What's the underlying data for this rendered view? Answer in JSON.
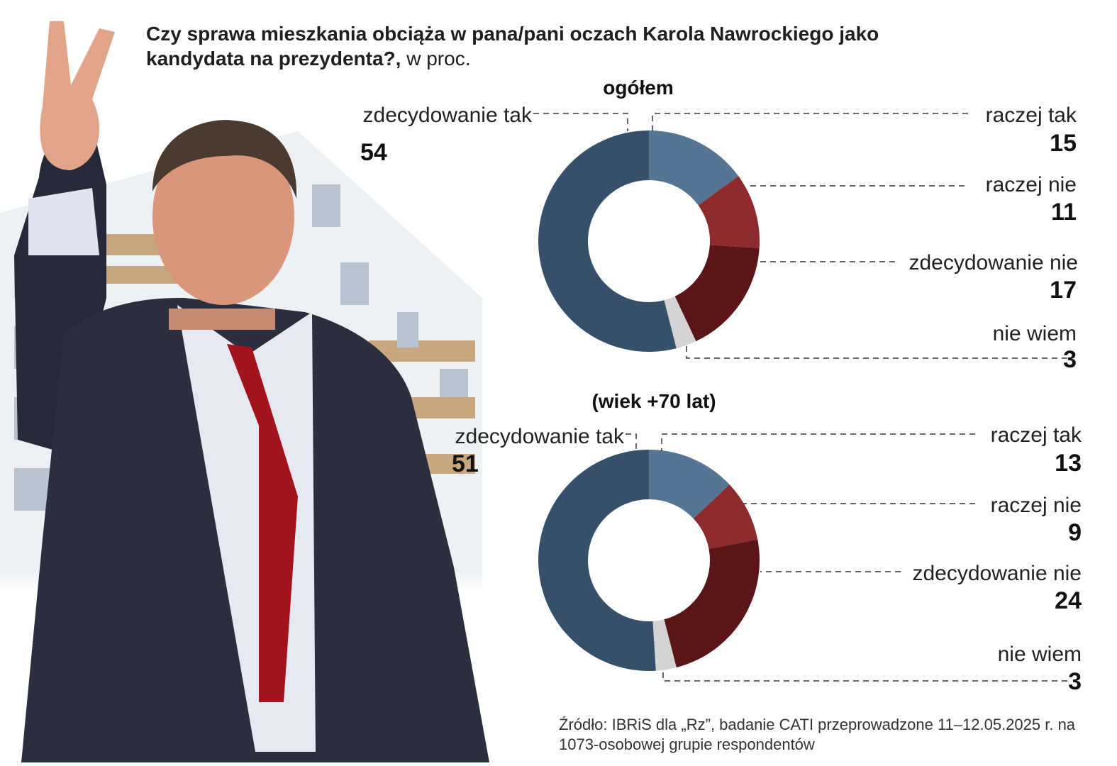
{
  "title": "Czy sprawa mieszkania obciąża w pana/pani oczach Karola Nawrockiego jako kandydata na prezydenta?,",
  "unit": "w proc.",
  "source": "Źródło: IBRiS dla „Rz”, badanie CATI przeprowadzone 11–12.05.2025 r. na 1073-osobowej grupie respondentów",
  "colors": {
    "zdecydowanie_tak": "#36506b",
    "raczej_tak": "#557594",
    "raczej_nie": "#8c2a2e",
    "zdecydowanie_nie": "#5b1519",
    "nie_wiem": "#d4d4d4"
  },
  "photo": {
    "description_icon": "person-photo",
    "background_icon": "apartment-building"
  },
  "chart_data": [
    {
      "type": "pie",
      "title": "ogółem",
      "categories": [
        "zdecydowanie tak",
        "raczej tak",
        "raczej nie",
        "zdecydowanie nie",
        "nie wiem"
      ],
      "values": [
        54,
        15,
        11,
        17,
        3
      ]
    },
    {
      "type": "pie",
      "title": "(wiek +70 lat)",
      "categories": [
        "zdecydowanie tak",
        "raczej tak",
        "raczej nie",
        "zdecydowanie nie",
        "nie wiem"
      ],
      "values": [
        51,
        13,
        9,
        24,
        3
      ]
    }
  ]
}
